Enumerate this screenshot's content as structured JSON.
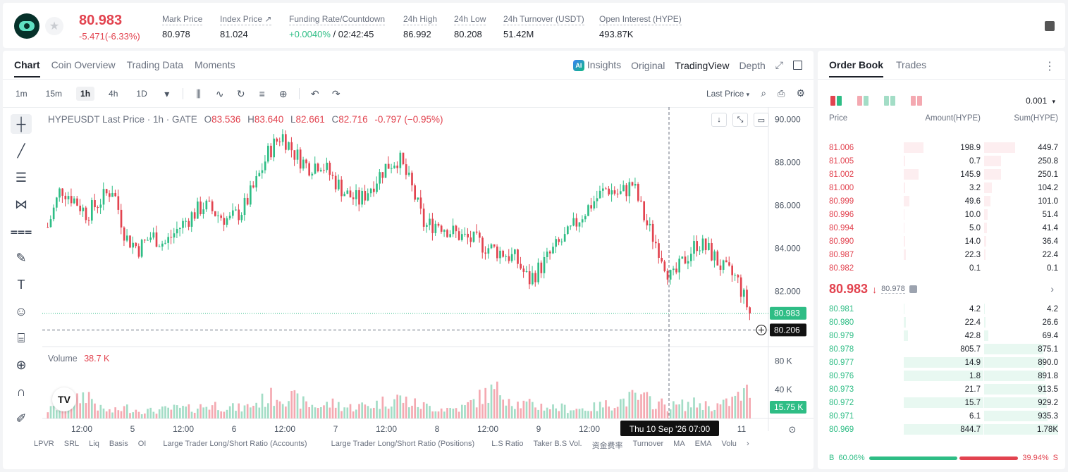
{
  "header": {
    "price": "80.983",
    "change": "-5.471(-6.33%)",
    "stats": [
      {
        "label": "Mark Price",
        "value": "80.978"
      },
      {
        "label": "Index Price ↗",
        "value": "81.024"
      },
      {
        "label": "Funding Rate/Countdown",
        "value_green": "+0.0040%",
        "value": " / 02:42:45"
      },
      {
        "label": "24h High",
        "value": "86.992"
      },
      {
        "label": "24h Low",
        "value": "80.208"
      },
      {
        "label": "24h Turnover (USDT)",
        "value": "51.42M"
      },
      {
        "label": "Open Interest (HYPE)",
        "value": "493.87K"
      }
    ]
  },
  "chart_panel": {
    "tabs": [
      "Chart",
      "Coin Overview",
      "Trading Data",
      "Moments"
    ],
    "views": {
      "insights": "Insights",
      "original": "Original",
      "tradingview": "TradingView",
      "depth": "Depth"
    },
    "timeframes": [
      "1m",
      "15m",
      "1h",
      "4h",
      "1D"
    ],
    "active_timeframe": "1h",
    "price_type": "Last Price",
    "legend": {
      "symbol": "HYPEUSDT Last Price · 1h · GATE",
      "o_label": "O",
      "o": "83.536",
      "h_label": "H",
      "h": "83.640",
      "l_label": "L",
      "l": "82.661",
      "c_label": "C",
      "c": "82.716",
      "chg": "-0.797 (−0.95%)"
    },
    "volume_legend": {
      "label": "Volume",
      "value": "38.7 K"
    },
    "bottom_indicators": [
      "LPVR",
      "SRL",
      "Liq",
      "Basis",
      "OI",
      "Large Trader Long/Short Ratio (Accounts)",
      "Large Trader Long/Short Ratio (Positions)",
      "L.S Ratio",
      "Taker B.S Vol.",
      "资金费率",
      "Turnover",
      "MA",
      "EMA",
      "Volu"
    ]
  },
  "chart_data": {
    "type": "candlestick",
    "title": "HYPEUSDT Last Price · 1h · GATE",
    "y_ticks": [
      "90.000",
      "88.000",
      "86.000",
      "84.000",
      "82.000"
    ],
    "ylim": [
      79.5,
      90.5
    ],
    "vol_ticks": [
      "80 K",
      "40 K"
    ],
    "x_ticks": [
      "12:00",
      "5",
      "12:00",
      "6",
      "12:00",
      "7",
      "12:00",
      "8",
      "12:00",
      "9",
      "12:00",
      "11"
    ],
    "last_price": 80.983,
    "last_price_label": "80.983",
    "crosshair_price": 80.206,
    "crosshair_price_label": "80.206",
    "crosshair_time": "Thu 10 Sep '26   07:00",
    "last_volume_label": "15.75 K",
    "close_path": [
      85.0,
      86.8,
      86.3,
      85.6,
      86.2,
      86.8,
      84.5,
      84.0,
      84.6,
      84.2,
      84.9,
      85.5,
      86.0,
      85.6,
      85.3,
      85.8,
      87.0,
      88.5,
      89.3,
      88.4,
      87.8,
      88.0,
      87.2,
      86.5,
      86.2,
      87.0,
      87.8,
      88.2,
      86.8,
      85.0,
      85.2,
      84.8,
      84.5,
      84.3,
      84.0,
      83.8,
      83.5,
      82.5,
      83.2,
      84.0,
      84.6,
      85.5,
      86.2,
      86.8,
      86.5,
      87.0,
      85.2,
      84.0,
      82.5,
      83.5,
      84.3,
      83.8,
      83.0,
      82.6,
      80.98
    ],
    "volume_path": [
      12,
      18,
      22,
      38,
      14,
      10,
      16,
      12,
      11,
      13,
      15,
      14,
      18,
      20,
      16,
      15,
      22,
      30,
      35,
      28,
      20,
      18,
      22,
      16,
      18,
      20,
      25,
      30,
      22,
      18,
      15,
      14,
      16,
      28,
      38,
      40,
      22,
      20,
      18,
      16,
      15,
      14,
      16,
      20,
      25,
      30,
      28,
      22,
      18,
      20,
      22,
      18,
      20,
      30,
      40
    ]
  },
  "orderbook": {
    "tabs": [
      "Order Book",
      "Trades"
    ],
    "precision": "0.001",
    "headers": [
      "Price",
      "Amount(HYPE)",
      "Sum(HYPE)"
    ],
    "asks": [
      {
        "p": "81.006",
        "a": "198.9",
        "s": "449.7",
        "af": 0.24,
        "sf": 0.42
      },
      {
        "p": "81.005",
        "a": "0.7",
        "s": "250.8",
        "af": 0.02,
        "sf": 0.23
      },
      {
        "p": "81.002",
        "a": "145.9",
        "s": "250.1",
        "af": 0.18,
        "sf": 0.23
      },
      {
        "p": "81.000",
        "a": "3.2",
        "s": "104.2",
        "af": 0.02,
        "sf": 0.1
      },
      {
        "p": "80.999",
        "a": "49.6",
        "s": "101.0",
        "af": 0.07,
        "sf": 0.09
      },
      {
        "p": "80.996",
        "a": "10.0",
        "s": "51.4",
        "af": 0.01,
        "sf": 0.05
      },
      {
        "p": "80.994",
        "a": "5.0",
        "s": "41.4",
        "af": 0.01,
        "sf": 0.04
      },
      {
        "p": "80.990",
        "a": "14.0",
        "s": "36.4",
        "af": 0.02,
        "sf": 0.03
      },
      {
        "p": "80.987",
        "a": "22.3",
        "s": "22.4",
        "af": 0.03,
        "sf": 0.02
      },
      {
        "p": "80.982",
        "a": "0.1",
        "s": "0.1",
        "af": 0.0,
        "sf": 0.0
      }
    ],
    "mid_price": "80.983",
    "mid_arrow": "↓",
    "mark_price": "80.978",
    "bids": [
      {
        "p": "80.981",
        "a": "4.2",
        "s": "4.2",
        "af": 0.01,
        "sf": 0.01
      },
      {
        "p": "80.980",
        "a": "22.4",
        "s": "26.6",
        "af": 0.03,
        "sf": 0.02
      },
      {
        "p": "80.979",
        "a": "42.8",
        "s": "69.4",
        "af": 0.05,
        "sf": 0.06
      },
      {
        "p": "80.978",
        "a": "805.7",
        "s": "875.1",
        "af": 0.0,
        "sf": 0.8
      },
      {
        "p": "80.977",
        "a": "14.9",
        "s": "890.0",
        "af": 0.98,
        "sf": 0.81
      },
      {
        "p": "80.976",
        "a": "1.8",
        "s": "891.8",
        "af": 0.98,
        "sf": 0.82
      },
      {
        "p": "80.973",
        "a": "21.7",
        "s": "913.5",
        "af": 0.0,
        "sf": 0.84
      },
      {
        "p": "80.972",
        "a": "15.7",
        "s": "929.2",
        "af": 0.98,
        "sf": 0.85
      },
      {
        "p": "80.971",
        "a": "6.1",
        "s": "935.3",
        "af": 0.0,
        "sf": 0.86
      },
      {
        "p": "80.969",
        "a": "844.7",
        "s": "1.78K",
        "af": 0.98,
        "sf": 1.0
      }
    ],
    "buy_ratio_label": "B",
    "buy_ratio": "60.06%",
    "sell_ratio": "39.94%",
    "sell_ratio_label": "S",
    "buy_fraction": 0.6006
  },
  "colors": {
    "up": "#2ebd85",
    "down": "#e2434f",
    "up_light": "#a3ddc6",
    "down_light": "#f4a9b1"
  }
}
